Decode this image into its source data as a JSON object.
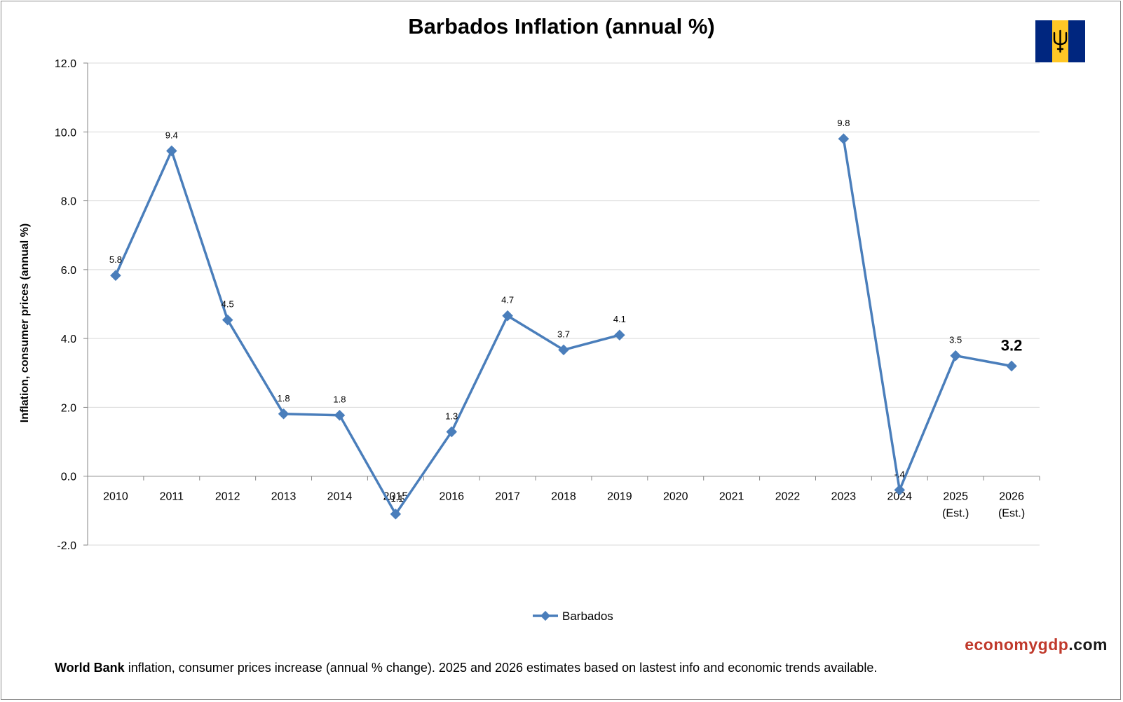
{
  "chart_data": {
    "type": "line",
    "title": "Barbados Inflation (annual %)",
    "ylabel": "Inflation, consumer prices (annual %)",
    "xlabel": "",
    "ylim": [
      -2.0,
      12.0
    ],
    "yticks": [
      "12.0",
      "10.0",
      "8.0",
      "6.0",
      "4.0",
      "2.0",
      "0.0",
      "-2.0"
    ],
    "ytick_values": [
      12,
      10,
      8,
      6,
      4,
      2,
      0,
      -2
    ],
    "grid": true,
    "legend_position": "bottom",
    "categories": [
      [
        "2010"
      ],
      [
        "2011"
      ],
      [
        "2012"
      ],
      [
        "2013"
      ],
      [
        "2014"
      ],
      [
        "2015"
      ],
      [
        "2016"
      ],
      [
        "2017"
      ],
      [
        "2018"
      ],
      [
        "2019"
      ],
      [
        "2020"
      ],
      [
        "2021"
      ],
      [
        "2022"
      ],
      [
        "2023"
      ],
      [
        "2024"
      ],
      [
        "2025",
        "(Est.)"
      ],
      [
        "2026",
        "(Est.)"
      ]
    ],
    "series": [
      {
        "name": "Barbados",
        "color": "#4a7ebb",
        "values": [
          5.83,
          9.45,
          4.54,
          1.81,
          1.77,
          -1.1,
          1.29,
          4.66,
          3.67,
          4.1,
          null,
          null,
          null,
          9.8,
          -0.4,
          3.5,
          3.2
        ],
        "labels": [
          "5.8",
          "9.4",
          "4.5",
          "1.8",
          "1.8",
          "-1.1",
          "1.3",
          "4.7",
          "3.7",
          "4.1",
          "",
          "",
          "",
          "9.8",
          "-.4",
          "3.5",
          "3.2"
        ]
      }
    ]
  },
  "flag": {
    "name": "barbados-flag-icon",
    "colors": {
      "blue": "#00267f",
      "gold": "#ffc726",
      "trident": "#000000"
    }
  },
  "brand": {
    "part1": "economygdp",
    "part2": ".com"
  },
  "footnote": {
    "bold": "World Bank",
    "rest": " inflation, consumer prices increase (annual % change).  2025 and 2026 estimates based on lastest info and economic trends available."
  }
}
